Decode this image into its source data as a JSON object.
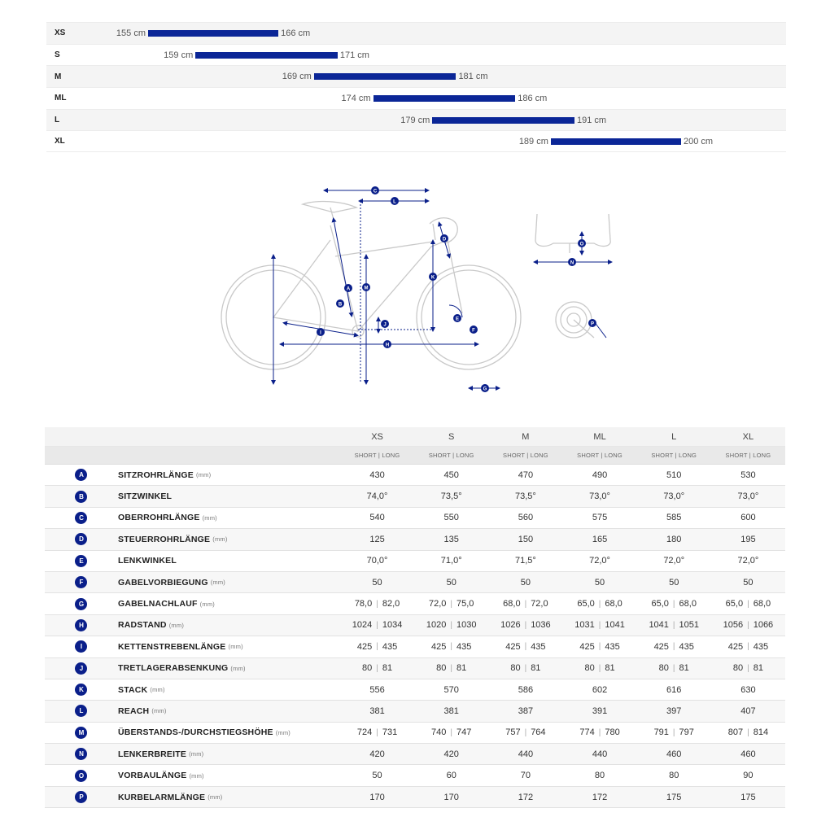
{
  "size_chart": {
    "rows": [
      {
        "size": "XS",
        "min": "155 cm",
        "max": "166 cm",
        "min_cm": 155,
        "max_cm": 166
      },
      {
        "size": "S",
        "min": "159 cm",
        "max": "171 cm",
        "min_cm": 159,
        "max_cm": 171
      },
      {
        "size": "M",
        "min": "169 cm",
        "max": "181 cm",
        "min_cm": 169,
        "max_cm": 181
      },
      {
        "size": "ML",
        "min": "174 cm",
        "max": "186 cm",
        "min_cm": 174,
        "max_cm": 186
      },
      {
        "size": "L",
        "min": "179 cm",
        "max": "191 cm",
        "min_cm": 179,
        "max_cm": 191
      },
      {
        "size": "XL",
        "min": "189 cm",
        "max": "200 cm",
        "min_cm": 189,
        "max_cm": 200
      }
    ],
    "bar_color": "#0b2697"
  },
  "diagram": {
    "labels": [
      "A",
      "B",
      "C",
      "D",
      "E",
      "F",
      "G",
      "H",
      "I",
      "J",
      "K",
      "L",
      "M",
      "N",
      "O",
      "P"
    ],
    "accent_color": "#0a1f8a"
  },
  "geometry": {
    "sizes": [
      "XS",
      "S",
      "M",
      "ML",
      "L",
      "XL"
    ],
    "sub_label": "SHORT | LONG",
    "rows": [
      {
        "letter": "A",
        "name": "SITZROHRLÄNGE",
        "unit": "(mm)",
        "values": [
          "430",
          "450",
          "470",
          "490",
          "510",
          "530"
        ]
      },
      {
        "letter": "B",
        "name": "SITZWINKEL",
        "unit": "",
        "values": [
          "74,0°",
          "73,5°",
          "73,5°",
          "73,0°",
          "73,0°",
          "73,0°"
        ]
      },
      {
        "letter": "C",
        "name": "OBERROHRLÄNGE",
        "unit": "(mm)",
        "values": [
          "540",
          "550",
          "560",
          "575",
          "585",
          "600"
        ]
      },
      {
        "letter": "D",
        "name": "STEUERROHRLÄNGE",
        "unit": "(mm)",
        "values": [
          "125",
          "135",
          "150",
          "165",
          "180",
          "195"
        ]
      },
      {
        "letter": "E",
        "name": "LENKWINKEL",
        "unit": "",
        "values": [
          "70,0°",
          "71,0°",
          "71,5°",
          "72,0°",
          "72,0°",
          "72,0°"
        ]
      },
      {
        "letter": "F",
        "name": "GABELVORBIEGUNG",
        "unit": "(mm)",
        "values": [
          "50",
          "50",
          "50",
          "50",
          "50",
          "50"
        ]
      },
      {
        "letter": "G",
        "name": "GABELNACHLAUF",
        "unit": "(mm)",
        "values": [
          [
            "78,0",
            "82,0"
          ],
          [
            "72,0",
            "75,0"
          ],
          [
            "68,0",
            "72,0"
          ],
          [
            "65,0",
            "68,0"
          ],
          [
            "65,0",
            "68,0"
          ],
          [
            "65,0",
            "68,0"
          ]
        ]
      },
      {
        "letter": "H",
        "name": "RADSTAND",
        "unit": "(mm)",
        "values": [
          [
            "1024",
            "1034"
          ],
          [
            "1020",
            "1030"
          ],
          [
            "1026",
            "1036"
          ],
          [
            "1031",
            "1041"
          ],
          [
            "1041",
            "1051"
          ],
          [
            "1056",
            "1066"
          ]
        ]
      },
      {
        "letter": "I",
        "name": "KETTENSTREBENLÄNGE",
        "unit": "(mm)",
        "values": [
          [
            "425",
            "435"
          ],
          [
            "425",
            "435"
          ],
          [
            "425",
            "435"
          ],
          [
            "425",
            "435"
          ],
          [
            "425",
            "435"
          ],
          [
            "425",
            "435"
          ]
        ]
      },
      {
        "letter": "J",
        "name": "TRETLAGERABSENKUNG",
        "unit": "(mm)",
        "values": [
          [
            "80",
            "81"
          ],
          [
            "80",
            "81"
          ],
          [
            "80",
            "81"
          ],
          [
            "80",
            "81"
          ],
          [
            "80",
            "81"
          ],
          [
            "80",
            "81"
          ]
        ]
      },
      {
        "letter": "K",
        "name": "STACK",
        "unit": "(mm)",
        "values": [
          "556",
          "570",
          "586",
          "602",
          "616",
          "630"
        ]
      },
      {
        "letter": "L",
        "name": "REACH",
        "unit": "(mm)",
        "values": [
          "381",
          "381",
          "387",
          "391",
          "397",
          "407"
        ]
      },
      {
        "letter": "M",
        "name": "ÜBERSTANDS-/DURCHSTIEGSHÖHE",
        "unit": "(mm)",
        "values": [
          [
            "724",
            "731"
          ],
          [
            "740",
            "747"
          ],
          [
            "757",
            "764"
          ],
          [
            "774",
            "780"
          ],
          [
            "791",
            "797"
          ],
          [
            "807",
            "814"
          ]
        ]
      },
      {
        "letter": "N",
        "name": "LENKERBREITE",
        "unit": "(mm)",
        "values": [
          "420",
          "420",
          "440",
          "440",
          "460",
          "460"
        ]
      },
      {
        "letter": "O",
        "name": "VORBAULÄNGE",
        "unit": "(mm)",
        "values": [
          "50",
          "60",
          "70",
          "80",
          "80",
          "90"
        ]
      },
      {
        "letter": "P",
        "name": "KURBELARMLÄNGE",
        "unit": "(mm)",
        "values": [
          "170",
          "170",
          "172",
          "172",
          "175",
          "175"
        ]
      }
    ]
  }
}
